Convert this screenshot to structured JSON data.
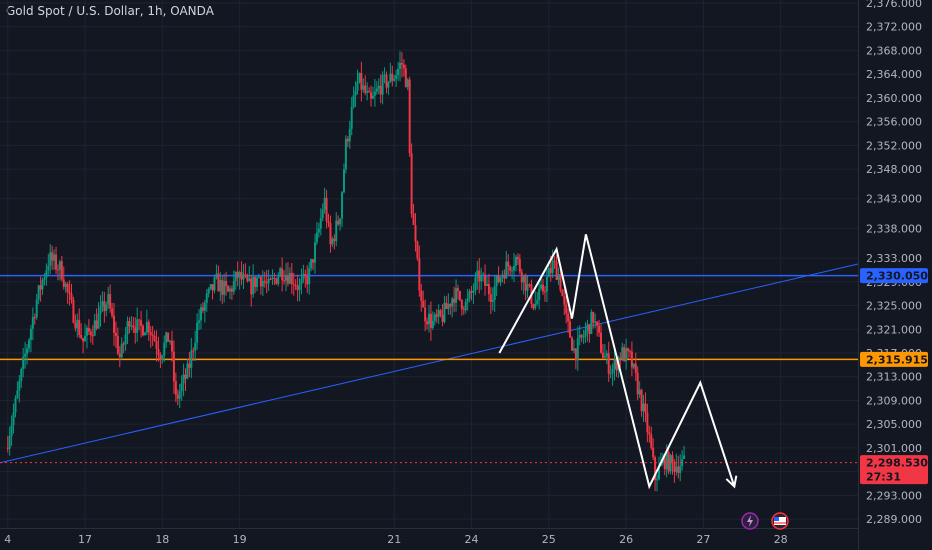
{
  "chart_data": {
    "type": "candlestick",
    "title": "Gold Spot / U.S. Dollar, 1h, OANDA",
    "ylim": [
      2287.5,
      2376.5
    ],
    "xlim": [
      -0.05,
      5.5
    ],
    "y_ticks": [
      "2,376.000",
      "2,372.000",
      "2,368.000",
      "2,364.000",
      "2,360.000",
      "2,356.000",
      "2,352.000",
      "2,348.000",
      "2,343.000",
      "2,338.000",
      "2,333.000",
      "2,329.000",
      "2,325.000",
      "2,321.000",
      "2,317.000",
      "2,313.000",
      "2,309.000",
      "2,305.000",
      "2,301.000",
      "2,297.000",
      "2,293.000",
      "2,289.000"
    ],
    "x_ticks": [
      {
        "label": "4",
        "x": 0
      },
      {
        "label": "17",
        "x": 0.5
      },
      {
        "label": "18",
        "x": 1.0
      },
      {
        "label": "19",
        "x": 1.5
      },
      {
        "label": "21",
        "x": 2.5
      },
      {
        "label": "24",
        "x": 3.0
      },
      {
        "label": "25",
        "x": 3.5
      },
      {
        "label": "26",
        "x": 4.0
      },
      {
        "label": "27",
        "x": 4.5
      },
      {
        "label": "28",
        "x": 5.0
      }
    ],
    "close_path": [
      [
        0.0,
        2301
      ],
      [
        0.06,
        2308
      ],
      [
        0.12,
        2316
      ],
      [
        0.2,
        2326
      ],
      [
        0.28,
        2333
      ],
      [
        0.36,
        2331
      ],
      [
        0.42,
        2325
      ],
      [
        0.5,
        2319
      ],
      [
        0.58,
        2322
      ],
      [
        0.66,
        2326
      ],
      [
        0.74,
        2316
      ],
      [
        0.8,
        2323
      ],
      [
        0.86,
        2321
      ],
      [
        0.92,
        2322
      ],
      [
        1.0,
        2317
      ],
      [
        1.06,
        2320
      ],
      [
        1.1,
        2309
      ],
      [
        1.18,
        2314
      ],
      [
        1.24,
        2322
      ],
      [
        1.3,
        2326
      ],
      [
        1.36,
        2329
      ],
      [
        1.44,
        2327
      ],
      [
        1.5,
        2330
      ],
      [
        1.58,
        2328
      ],
      [
        1.64,
        2330
      ],
      [
        1.7,
        2328
      ],
      [
        1.78,
        2331
      ],
      [
        1.84,
        2330
      ],
      [
        1.9,
        2328
      ],
      [
        1.96,
        2330
      ],
      [
        2.02,
        2337
      ],
      [
        2.06,
        2343
      ],
      [
        2.1,
        2335
      ],
      [
        2.16,
        2340
      ],
      [
        2.2,
        2352
      ],
      [
        2.24,
        2358
      ],
      [
        2.28,
        2363
      ],
      [
        2.32,
        2361
      ],
      [
        2.36,
        2359
      ],
      [
        2.42,
        2362
      ],
      [
        2.48,
        2363
      ],
      [
        2.52,
        2364
      ],
      [
        2.56,
        2366
      ],
      [
        2.6,
        2362
      ],
      [
        2.62,
        2343
      ],
      [
        2.66,
        2332
      ],
      [
        2.7,
        2324
      ],
      [
        2.76,
        2322
      ],
      [
        2.82,
        2323
      ],
      [
        2.9,
        2327
      ],
      [
        2.98,
        2325
      ],
      [
        3.06,
        2330
      ],
      [
        3.14,
        2327
      ],
      [
        3.22,
        2331
      ],
      [
        3.3,
        2333
      ],
      [
        3.36,
        2329
      ],
      [
        3.42,
        2325
      ],
      [
        3.48,
        2328
      ],
      [
        3.54,
        2332
      ],
      [
        3.58,
        2330
      ],
      [
        3.62,
        2323
      ],
      [
        3.68,
        2317
      ],
      [
        3.74,
        2320
      ],
      [
        3.8,
        2323
      ],
      [
        3.86,
        2317
      ],
      [
        3.92,
        2314
      ],
      [
        3.98,
        2317
      ],
      [
        4.04,
        2316
      ],
      [
        4.1,
        2310
      ],
      [
        4.16,
        2303
      ],
      [
        4.2,
        2296
      ],
      [
        4.26,
        2299
      ],
      [
        4.32,
        2298
      ],
      [
        4.38,
        2298.5
      ]
    ],
    "pattern_path": [
      [
        3.18,
        2317
      ],
      [
        3.55,
        2334.5
      ],
      [
        3.65,
        2322.8
      ],
      [
        3.74,
        2337
      ],
      [
        4.15,
        2294.5
      ],
      [
        4.48,
        2312
      ],
      [
        4.7,
        2294.5
      ]
    ],
    "trendline": [
      [
        -0.05,
        2298.5
      ],
      [
        5.5,
        2332
      ]
    ],
    "levels": [
      {
        "value": 2330.05,
        "label": "2,330.050",
        "color": "#2962ff"
      },
      {
        "value": 2315.915,
        "label": "2,315.915",
        "color": "#ff9800"
      }
    ],
    "last_price": {
      "value": 2298.53,
      "label": "2,298.530",
      "countdown": "27:31",
      "color": "#f23645"
    },
    "up_color": "#089981",
    "down_color": "#f23645"
  }
}
